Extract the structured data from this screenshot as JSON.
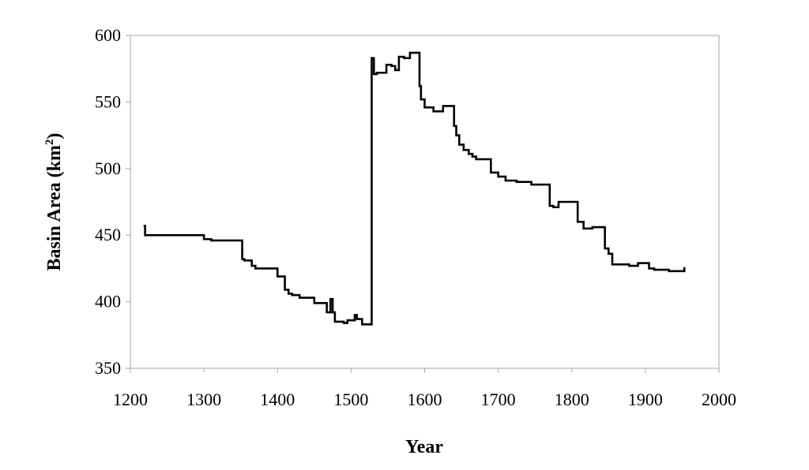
{
  "chart_data": {
    "type": "line",
    "title": "",
    "xlabel": "Year",
    "ylabel_prefix": "Basin Area (km",
    "ylabel_sup": "2",
    "ylabel_suffix": ")",
    "xlim": [
      1200,
      2000
    ],
    "ylim": [
      350,
      600
    ],
    "xticks": [
      "1200",
      "1300",
      "1400",
      "1500",
      "1600",
      "1700",
      "1800",
      "1900",
      "2000"
    ],
    "yticks": [
      "350",
      "400",
      "450",
      "500",
      "550",
      "600"
    ],
    "grid": false,
    "legend": "none",
    "line_color": "#000000",
    "series": [
      {
        "x": [
          1218,
          1220,
          1220,
          1300,
          1300,
          1310,
          1310,
          1352,
          1352,
          1355,
          1355,
          1365,
          1365,
          1370,
          1370,
          1400,
          1400,
          1410,
          1410,
          1415,
          1415,
          1420,
          1420,
          1430,
          1430,
          1450,
          1450,
          1467,
          1467,
          1472,
          1472,
          1475,
          1475,
          1478,
          1478,
          1490,
          1490,
          1495,
          1495,
          1505,
          1505,
          1508,
          1508,
          1515,
          1515,
          1528,
          1528,
          1531,
          1531,
          1535,
          1535,
          1548,
          1548,
          1555,
          1555,
          1560,
          1560,
          1565,
          1565,
          1572,
          1572,
          1580,
          1580,
          1588,
          1588,
          1593,
          1593,
          1595,
          1595,
          1600,
          1600,
          1612,
          1612,
          1625,
          1625,
          1640,
          1640,
          1643,
          1643,
          1647,
          1647,
          1653,
          1653,
          1660,
          1660,
          1665,
          1665,
          1670,
          1670,
          1690,
          1690,
          1700,
          1700,
          1710,
          1710,
          1725,
          1725,
          1745,
          1745,
          1770,
          1770,
          1775,
          1775,
          1782,
          1782,
          1808,
          1808,
          1816,
          1816,
          1828,
          1828,
          1845,
          1845,
          1850,
          1850,
          1855,
          1855,
          1878,
          1878,
          1890,
          1890,
          1905,
          1905,
          1912,
          1912,
          1932,
          1932,
          1953,
          1953
        ],
        "y": [
          457,
          457,
          450,
          450,
          447,
          447,
          446,
          446,
          432,
          432,
          431,
          431,
          427,
          427,
          425,
          425,
          419,
          419,
          409,
          409,
          406,
          406,
          405,
          405,
          403,
          403,
          399,
          399,
          392,
          392,
          402,
          402,
          392,
          392,
          385,
          385,
          384,
          384,
          386,
          386,
          390,
          390,
          387,
          387,
          383,
          383,
          583,
          583,
          571,
          571,
          572,
          572,
          578,
          578,
          577,
          577,
          574,
          574,
          584,
          584,
          583,
          583,
          587,
          587,
          587,
          587,
          562,
          562,
          552,
          552,
          546,
          546,
          543,
          543,
          547,
          547,
          532,
          532,
          525,
          525,
          518,
          518,
          514,
          514,
          511,
          511,
          509,
          509,
          507,
          507,
          497,
          497,
          494,
          494,
          491,
          491,
          490,
          490,
          488,
          488,
          472,
          472,
          471,
          471,
          475,
          475,
          460,
          460,
          455,
          455,
          456,
          456,
          440,
          440,
          436,
          436,
          428,
          428,
          427,
          427,
          429,
          429,
          425,
          425,
          424,
          424,
          423,
          423,
          426
        ]
      }
    ]
  }
}
